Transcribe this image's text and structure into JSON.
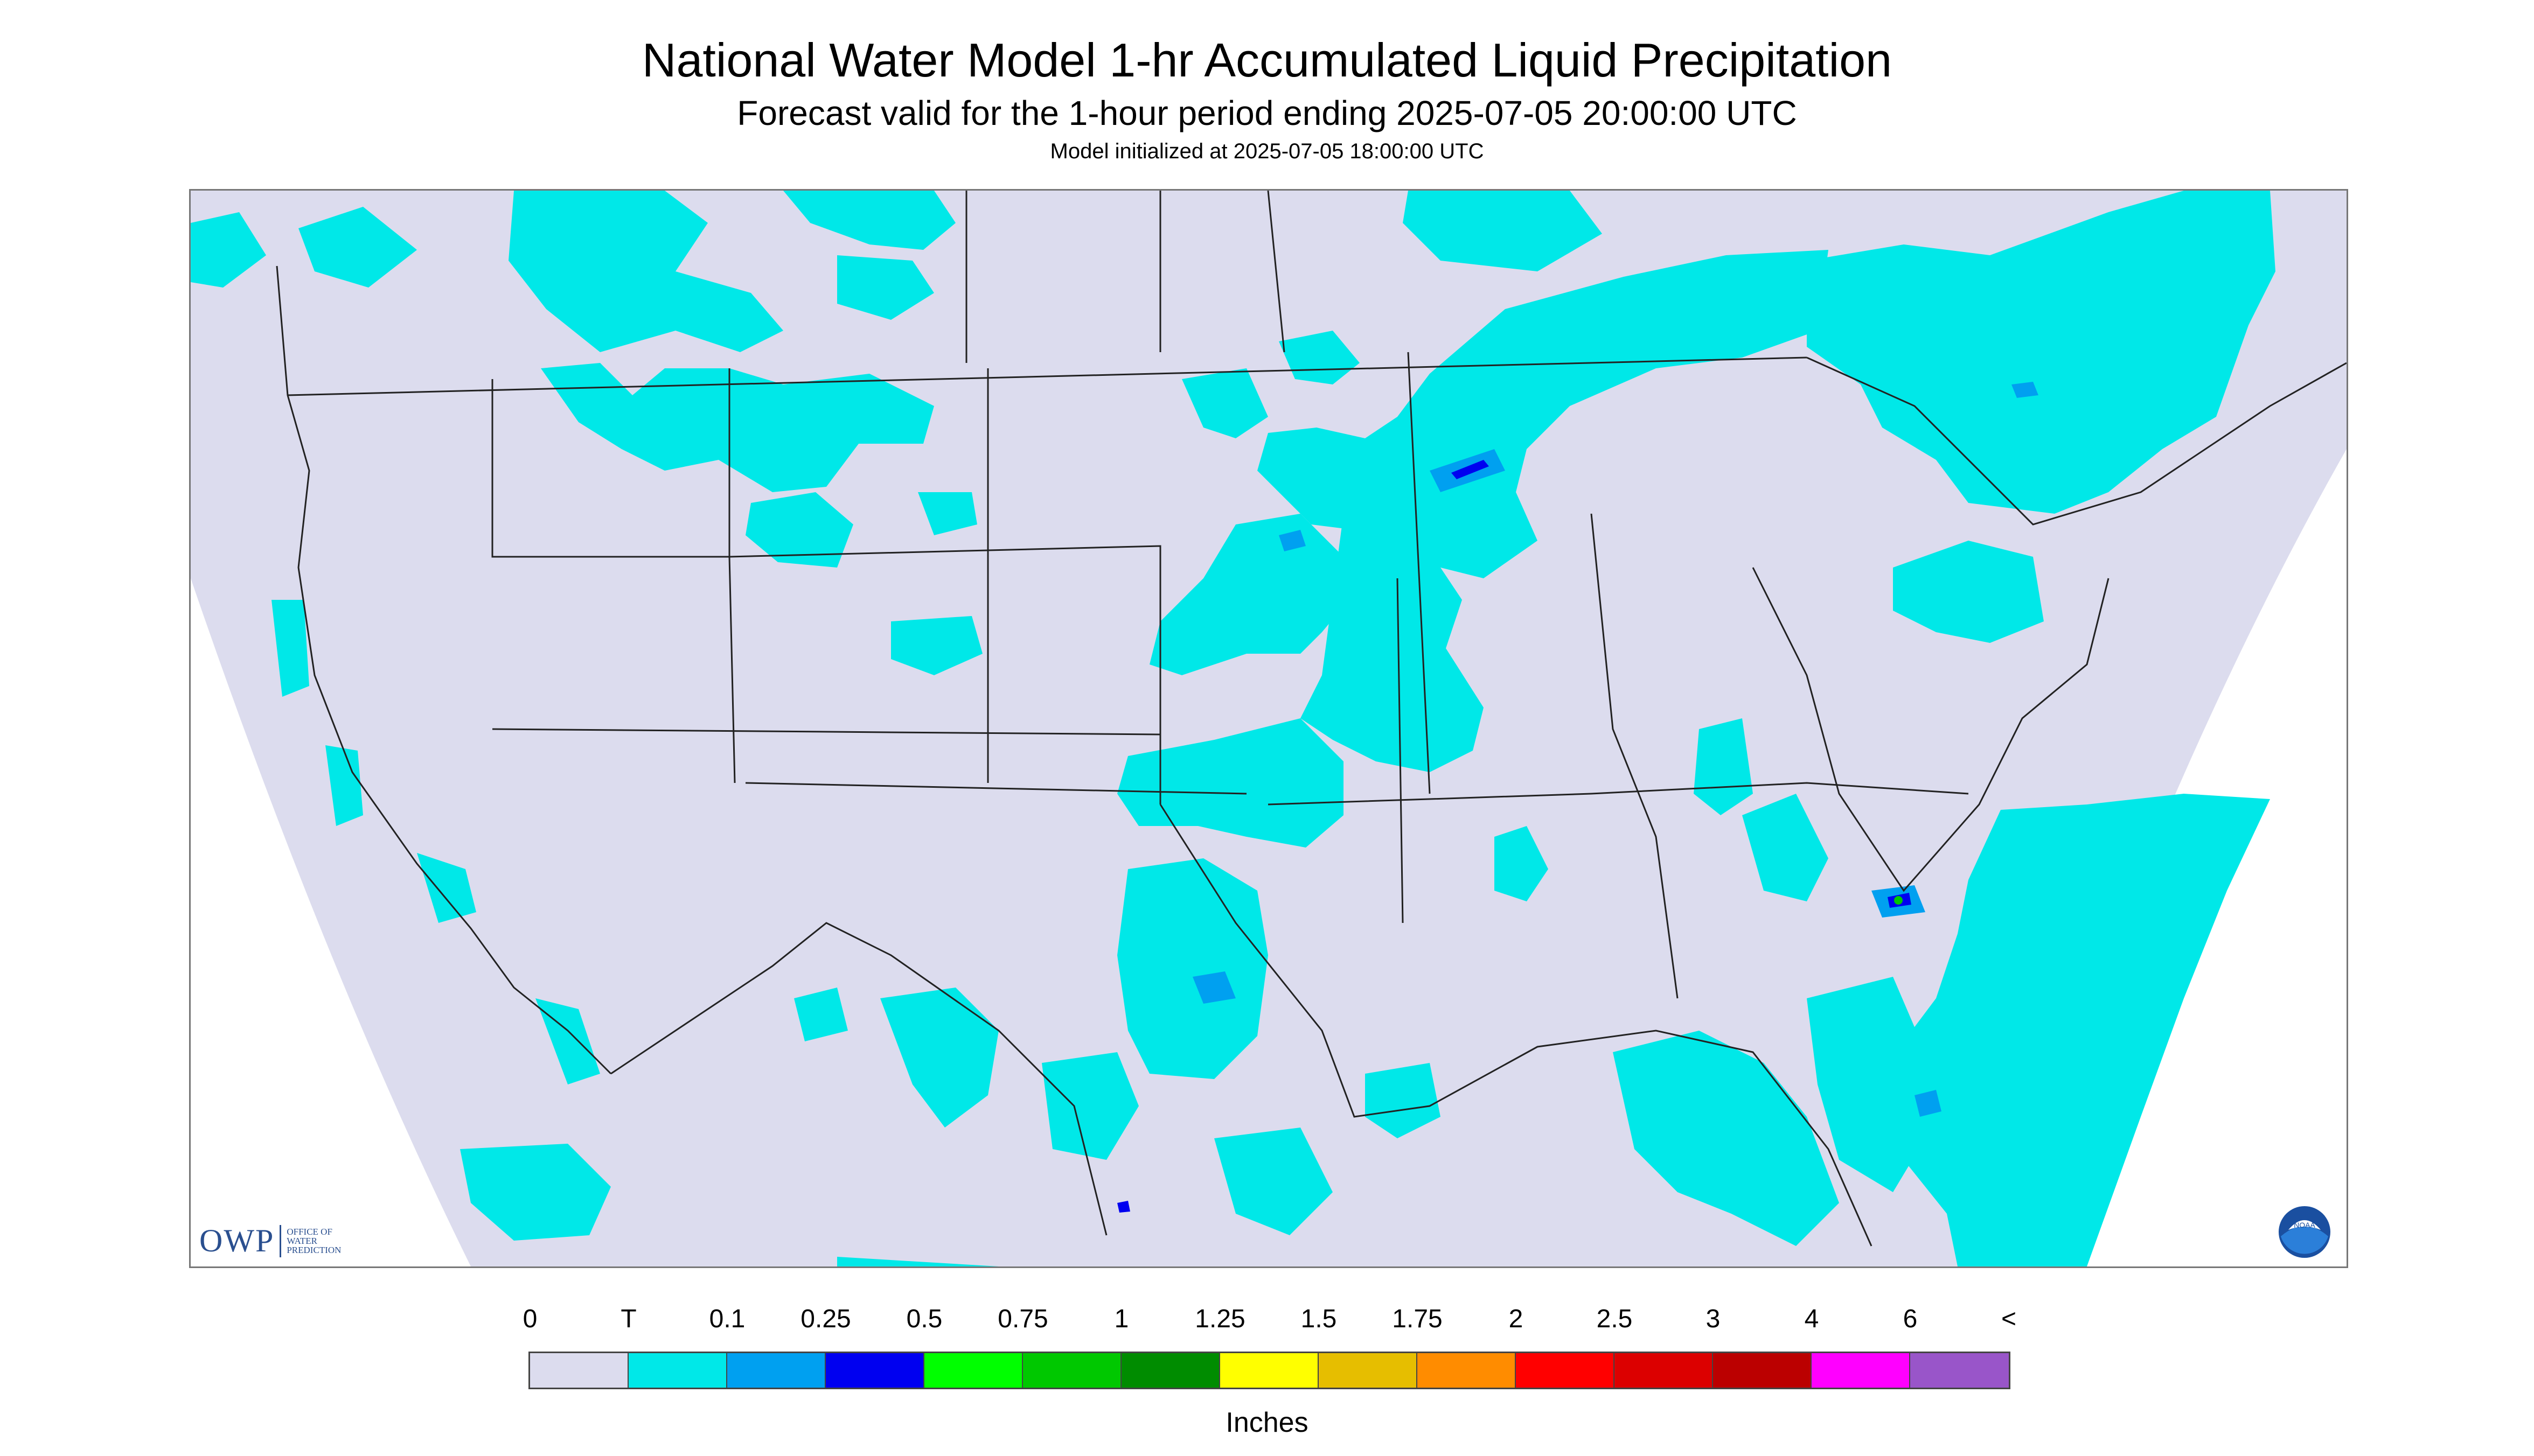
{
  "title": "National Water Model 1-hr Accumulated Liquid Precipitation",
  "subtitle": "Forecast valid for the 1-hour period ending 2025-07-05 20:00:00 UTC",
  "init_line": "Model initialized at 2025-07-05 18:00:00 UTC",
  "logos": {
    "owp_mark": "OWP",
    "owp_text": [
      "Office of",
      "Water",
      "Prediction"
    ],
    "noaa": "NOAA"
  },
  "legend": {
    "labels": [
      "0",
      "T",
      "0.1",
      "0.25",
      "0.5",
      "0.75",
      "1",
      "1.25",
      "1.5",
      "1.75",
      "2",
      "2.5",
      "3",
      "4",
      "6",
      "<"
    ],
    "colors": [
      "#dcdcee",
      "#00e8e8",
      "#00a0f0",
      "#0000f0",
      "#00ff00",
      "#00c800",
      "#008c00",
      "#ffff00",
      "#e6be00",
      "#ff8c00",
      "#ff0000",
      "#dc0000",
      "#bb0000",
      "#ff00ff",
      "#9955c9"
    ],
    "units": "Inches"
  },
  "colors": {
    "background_map": "#dcdcee",
    "outside_domain": "#ffffff",
    "light_precip": "#00e8e8",
    "moderate_precip": "#00a0f0",
    "heavy_precip": "#0000f0",
    "borders": "#222222"
  }
}
